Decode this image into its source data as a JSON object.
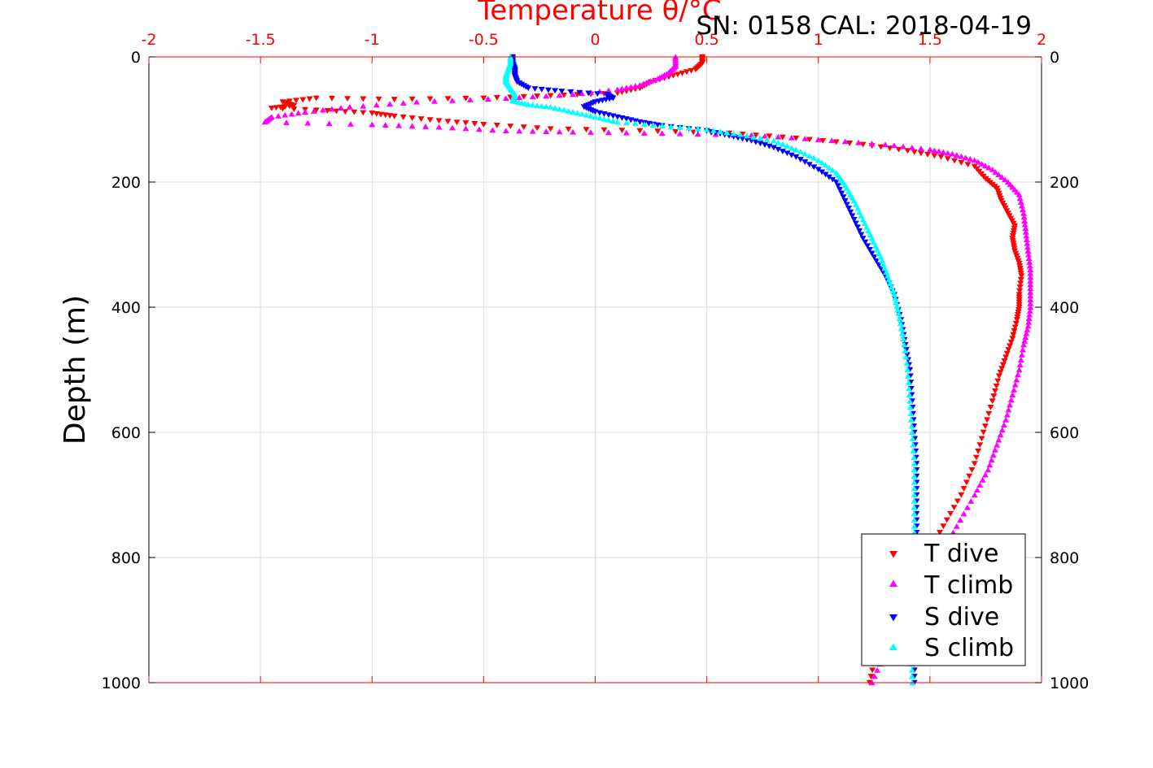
{
  "chart_data": {
    "type": "scatter",
    "title": "Temperature θ/°C",
    "annotation": "SN: 0158  CAL: 2018-04-19",
    "xlabel": "Temperature θ/°C",
    "ylabel": "Depth (m)",
    "xlim": [
      -2,
      2
    ],
    "ylim": [
      1000,
      0
    ],
    "x_ticks": [
      "-2",
      "-1.5",
      "-1",
      "-0.5",
      "0",
      "0.5",
      "1",
      "1.5",
      "2"
    ],
    "y_ticks": [
      "0",
      "200",
      "400",
      "600",
      "800",
      "1000"
    ],
    "grid": true,
    "legend_position": "bottom-right",
    "colors": {
      "axis": "#ff0000",
      "grid": "#dddddd"
    },
    "series": [
      {
        "name": "T dive",
        "marker": "triangle-down",
        "color": "#ff0000",
        "points": [
          [
            0.48,
            0
          ],
          [
            0.48,
            10
          ],
          [
            0.45,
            20
          ],
          [
            0.35,
            30
          ],
          [
            0.25,
            40
          ],
          [
            0.2,
            50
          ],
          [
            0.1,
            58
          ],
          [
            -0.2,
            62
          ],
          [
            -0.5,
            66
          ],
          [
            -0.9,
            68
          ],
          [
            -1.25,
            66
          ],
          [
            -1.4,
            72
          ],
          [
            -1.35,
            78
          ],
          [
            -1.45,
            82
          ],
          [
            -1.2,
            86
          ],
          [
            -1.0,
            90
          ],
          [
            -0.9,
            95
          ],
          [
            -0.7,
            102
          ],
          [
            -0.5,
            108
          ],
          [
            -0.2,
            115
          ],
          [
            0.2,
            118
          ],
          [
            0.6,
            122
          ],
          [
            0.9,
            130
          ],
          [
            1.2,
            140
          ],
          [
            1.4,
            150
          ],
          [
            1.55,
            160
          ],
          [
            1.7,
            175
          ],
          [
            1.75,
            195
          ],
          [
            1.8,
            210
          ],
          [
            1.82,
            230
          ],
          [
            1.85,
            250
          ],
          [
            1.88,
            270
          ],
          [
            1.87,
            290
          ],
          [
            1.88,
            310
          ],
          [
            1.9,
            330
          ],
          [
            1.91,
            350
          ],
          [
            1.9,
            380
          ],
          [
            1.9,
            400
          ],
          [
            1.89,
            420
          ],
          [
            1.87,
            450
          ],
          [
            1.84,
            480
          ],
          [
            1.81,
            510
          ],
          [
            1.78,
            550
          ],
          [
            1.74,
            600
          ],
          [
            1.7,
            650
          ],
          [
            1.64,
            700
          ],
          [
            1.56,
            750
          ],
          [
            1.48,
            800
          ],
          [
            1.4,
            850
          ],
          [
            1.32,
            900
          ],
          [
            1.26,
            950
          ],
          [
            1.23,
            1000
          ]
        ]
      },
      {
        "name": "T climb",
        "marker": "triangle-up",
        "color": "#ff00ff",
        "points": [
          [
            0.36,
            0
          ],
          [
            0.36,
            15
          ],
          [
            0.33,
            25
          ],
          [
            0.28,
            35
          ],
          [
            0.2,
            45
          ],
          [
            0.1,
            52
          ],
          [
            -0.1,
            60
          ],
          [
            -0.4,
            66
          ],
          [
            -0.8,
            72
          ],
          [
            -1.1,
            80
          ],
          [
            -1.3,
            88
          ],
          [
            -1.45,
            96
          ],
          [
            -1.48,
            104
          ],
          [
            -1.0,
            108
          ],
          [
            -0.7,
            112
          ],
          [
            -0.4,
            118
          ],
          [
            -0.1,
            120
          ],
          [
            0.3,
            122
          ],
          [
            0.7,
            125
          ],
          [
            1.0,
            132
          ],
          [
            1.3,
            140
          ],
          [
            1.5,
            148
          ],
          [
            1.6,
            155
          ],
          [
            1.7,
            165
          ],
          [
            1.78,
            180
          ],
          [
            1.85,
            200
          ],
          [
            1.9,
            220
          ],
          [
            1.92,
            250
          ],
          [
            1.93,
            280
          ],
          [
            1.94,
            310
          ],
          [
            1.95,
            340
          ],
          [
            1.95,
            370
          ],
          [
            1.95,
            400
          ],
          [
            1.94,
            430
          ],
          [
            1.92,
            460
          ],
          [
            1.9,
            500
          ],
          [
            1.87,
            540
          ],
          [
            1.84,
            580
          ],
          [
            1.8,
            620
          ],
          [
            1.76,
            660
          ],
          [
            1.7,
            700
          ],
          [
            1.62,
            750
          ],
          [
            1.54,
            800
          ],
          [
            1.46,
            850
          ],
          [
            1.38,
            900
          ],
          [
            1.3,
            950
          ],
          [
            1.24,
            1000
          ]
        ]
      },
      {
        "name": "S dive",
        "marker": "triangle-down",
        "color": "#0000ff",
        "points": [
          [
            -0.37,
            0
          ],
          [
            -0.37,
            10
          ],
          [
            -0.36,
            20
          ],
          [
            -0.36,
            30
          ],
          [
            -0.35,
            40
          ],
          [
            -0.3,
            50
          ],
          [
            -0.15,
            55
          ],
          [
            0.05,
            60
          ],
          [
            0.08,
            66
          ],
          [
            0.0,
            72
          ],
          [
            -0.05,
            80
          ],
          [
            0.0,
            88
          ],
          [
            0.1,
            96
          ],
          [
            0.2,
            104
          ],
          [
            0.3,
            110
          ],
          [
            0.5,
            118
          ],
          [
            0.6,
            126
          ],
          [
            0.7,
            134
          ],
          [
            0.8,
            145
          ],
          [
            0.9,
            160
          ],
          [
            1.0,
            180
          ],
          [
            1.08,
            200
          ],
          [
            1.12,
            230
          ],
          [
            1.16,
            260
          ],
          [
            1.2,
            290
          ],
          [
            1.25,
            320
          ],
          [
            1.3,
            350
          ],
          [
            1.34,
            380
          ],
          [
            1.37,
            420
          ],
          [
            1.39,
            460
          ],
          [
            1.41,
            500
          ],
          [
            1.42,
            550
          ],
          [
            1.43,
            600
          ],
          [
            1.44,
            650
          ],
          [
            1.44,
            700
          ],
          [
            1.44,
            750
          ],
          [
            1.44,
            800
          ],
          [
            1.44,
            850
          ],
          [
            1.43,
            900
          ],
          [
            1.43,
            950
          ],
          [
            1.43,
            1000
          ]
        ]
      },
      {
        "name": "S climb",
        "marker": "triangle-up",
        "color": "#00ffff",
        "points": [
          [
            -0.38,
            0
          ],
          [
            -0.38,
            10
          ],
          [
            -0.39,
            20
          ],
          [
            -0.4,
            30
          ],
          [
            -0.4,
            40
          ],
          [
            -0.38,
            50
          ],
          [
            -0.36,
            60
          ],
          [
            -0.37,
            70
          ],
          [
            -0.3,
            76
          ],
          [
            -0.2,
            80
          ],
          [
            -0.1,
            88
          ],
          [
            0.0,
            96
          ],
          [
            0.1,
            104
          ],
          [
            0.3,
            110
          ],
          [
            0.5,
            116
          ],
          [
            0.65,
            124
          ],
          [
            0.8,
            134
          ],
          [
            0.9,
            148
          ],
          [
            1.0,
            165
          ],
          [
            1.08,
            185
          ],
          [
            1.12,
            205
          ],
          [
            1.16,
            230
          ],
          [
            1.2,
            260
          ],
          [
            1.24,
            290
          ],
          [
            1.28,
            320
          ],
          [
            1.31,
            350
          ],
          [
            1.34,
            380
          ],
          [
            1.36,
            410
          ],
          [
            1.38,
            450
          ],
          [
            1.4,
            500
          ],
          [
            1.41,
            550
          ],
          [
            1.42,
            600
          ],
          [
            1.43,
            650
          ],
          [
            1.43,
            700
          ],
          [
            1.43,
            750
          ],
          [
            1.43,
            800
          ],
          [
            1.42,
            850
          ],
          [
            1.42,
            900
          ],
          [
            1.42,
            950
          ],
          [
            1.42,
            1000
          ]
        ]
      }
    ]
  }
}
